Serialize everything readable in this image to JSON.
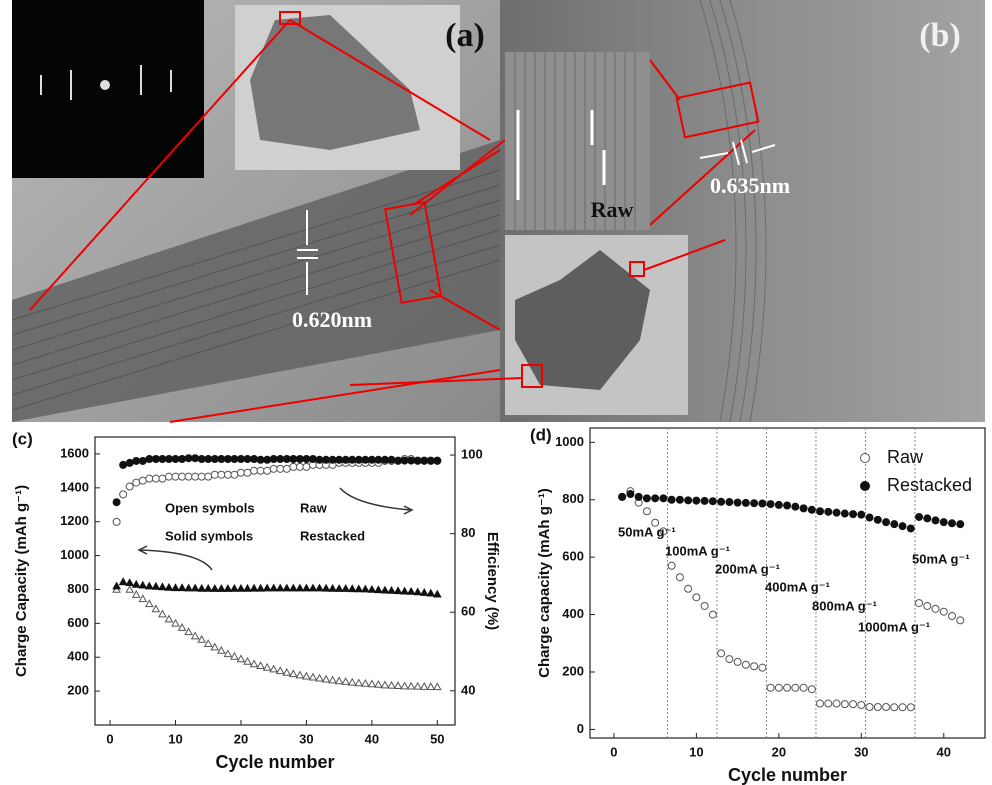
{
  "images": [
    {
      "label": "(a)",
      "annotations": [
        "0.620nm"
      ]
    },
    {
      "label": "(b)",
      "annotations": [
        "0.635nm",
        "Raw"
      ]
    }
  ],
  "chart_data": [
    {
      "type": "scatter",
      "title": "(c)",
      "x_label": "Cycle number",
      "y_label": "Charge Capacity (mAh g⁻¹)",
      "y2_label": "Efficiency (%)",
      "annotations": [
        "Open symbols",
        "Raw",
        "Solid symbols",
        "Restacked"
      ],
      "xlim": [
        -2.3,
        52.7
      ],
      "xticks": [
        0,
        10,
        20,
        30,
        40,
        50
      ],
      "ylim": [
        0,
        1700
      ],
      "yticks": [
        200,
        400,
        600,
        800,
        1000,
        1200,
        1400,
        1600
      ],
      "y2lim": [
        31.3,
        104.6
      ],
      "y2ticks": [
        40,
        60,
        80,
        100
      ],
      "x": [
        1,
        2,
        3,
        4,
        5,
        6,
        7,
        8,
        9,
        10,
        11,
        12,
        13,
        14,
        15,
        16,
        17,
        18,
        19,
        20,
        21,
        22,
        23,
        24,
        25,
        26,
        27,
        28,
        29,
        30,
        31,
        32,
        33,
        34,
        35,
        36,
        37,
        38,
        39,
        40,
        41,
        42,
        43,
        44,
        45,
        46,
        47,
        48,
        49,
        50
      ],
      "series": [
        {
          "marker": "triangle",
          "fill": "open",
          "color": "#555555",
          "values": [
            800,
            845,
            800,
            770,
            745,
            715,
            685,
            655,
            625,
            600,
            575,
            550,
            525,
            505,
            480,
            460,
            440,
            420,
            405,
            390,
            375,
            360,
            350,
            340,
            330,
            320,
            310,
            302,
            295,
            288,
            282,
            276,
            270,
            265,
            260,
            256,
            252,
            248,
            245,
            242,
            239,
            236,
            234,
            232,
            230,
            229,
            228,
            227,
            226,
            225
          ]
        },
        {
          "marker": "triangle",
          "fill": "solid",
          "color": "#111111",
          "values": [
            820,
            845,
            840,
            830,
            825,
            820,
            818,
            815,
            812,
            810,
            810,
            808,
            808,
            806,
            806,
            805,
            805,
            805,
            806,
            806,
            806,
            807,
            807,
            808,
            808,
            808,
            808,
            808,
            808,
            808,
            808,
            808,
            807,
            806,
            805,
            805,
            804,
            803,
            802,
            800,
            798,
            796,
            794,
            792,
            790,
            788,
            785,
            782,
            778,
            772
          ]
        },
        {
          "marker": "circle",
          "fill": "open",
          "color": "#555555",
          "axis": "y2",
          "values": [
            83,
            90,
            92,
            93,
            93.5,
            94,
            94,
            94,
            94.5,
            94.5,
            94.5,
            94.5,
            94.5,
            94.5,
            94.5,
            95,
            95,
            95,
            95,
            95.5,
            95.5,
            96,
            96,
            96,
            96.5,
            96.5,
            96.5,
            97,
            97,
            97,
            97.5,
            97.5,
            97.5,
            97.5,
            98,
            98,
            98,
            98,
            98,
            98,
            98,
            98.5,
            98.5,
            98.5,
            99,
            99,
            98.5,
            98.5,
            98.5,
            98.5
          ]
        },
        {
          "marker": "circle",
          "fill": "solid",
          "color": "#111111",
          "axis": "y2",
          "values": [
            88,
            97.5,
            98,
            98.5,
            98.5,
            99,
            99,
            99,
            99,
            99,
            99,
            99.2,
            99.2,
            99,
            99,
            99,
            99,
            99,
            99,
            99,
            99,
            99,
            98.8,
            98.8,
            99,
            99,
            99,
            99,
            99,
            99,
            99,
            98.8,
            98.8,
            98.8,
            98.8,
            98.8,
            98.8,
            98.8,
            98.8,
            98.8,
            98.8,
            98.8,
            98.8,
            98.6,
            98.6,
            98.6,
            98.6,
            98.6,
            98.6,
            98.6
          ]
        }
      ]
    },
    {
      "type": "scatter",
      "title": "(d)",
      "x_label": "Cycle number",
      "y_label": "Charge capacity (mAh g⁻¹)",
      "annotations": [
        "50mA g⁻¹",
        "100mA g⁻¹",
        "200mA g⁻¹",
        "400mA g⁻¹",
        "800mA g⁻¹",
        "1000mA g⁻¹",
        "50mA g⁻¹"
      ],
      "dividers": [
        6.5,
        12.5,
        18.5,
        24.5,
        30.5,
        36.5
      ],
      "legend": "upper right",
      "xlim": [
        -2.9,
        45
      ],
      "xticks": [
        0,
        10,
        20,
        30,
        40
      ],
      "ylim": [
        -30,
        1050
      ],
      "yticks": [
        0,
        200,
        400,
        600,
        800,
        1000
      ],
      "x": [
        1,
        2,
        3,
        4,
        5,
        6,
        7,
        8,
        9,
        10,
        11,
        12,
        13,
        14,
        15,
        16,
        17,
        18,
        19,
        20,
        21,
        22,
        23,
        24,
        25,
        26,
        27,
        28,
        29,
        30,
        31,
        32,
        33,
        34,
        35,
        36,
        37,
        38,
        39,
        40,
        41,
        42
      ],
      "series": [
        {
          "name": "Raw",
          "marker": "circle",
          "fill": "open",
          "color": "#555555",
          "values": [
            810,
            830,
            790,
            760,
            720,
            690,
            570,
            530,
            490,
            460,
            430,
            400,
            265,
            245,
            235,
            225,
            220,
            215,
            145,
            145,
            145,
            145,
            145,
            140,
            90,
            90,
            90,
            88,
            88,
            85,
            78,
            78,
            78,
            77,
            77,
            77,
            440,
            430,
            420,
            410,
            395,
            380
          ]
        },
        {
          "name": "Restacked",
          "marker": "circle",
          "fill": "solid",
          "color": "#111111",
          "values": [
            810,
            820,
            810,
            805,
            805,
            805,
            800,
            800,
            798,
            797,
            796,
            795,
            793,
            792,
            790,
            789,
            788,
            787,
            785,
            782,
            780,
            776,
            770,
            765,
            760,
            758,
            755,
            752,
            750,
            748,
            738,
            730,
            722,
            715,
            708,
            700,
            740,
            735,
            728,
            722,
            718,
            715
          ]
        }
      ]
    }
  ]
}
